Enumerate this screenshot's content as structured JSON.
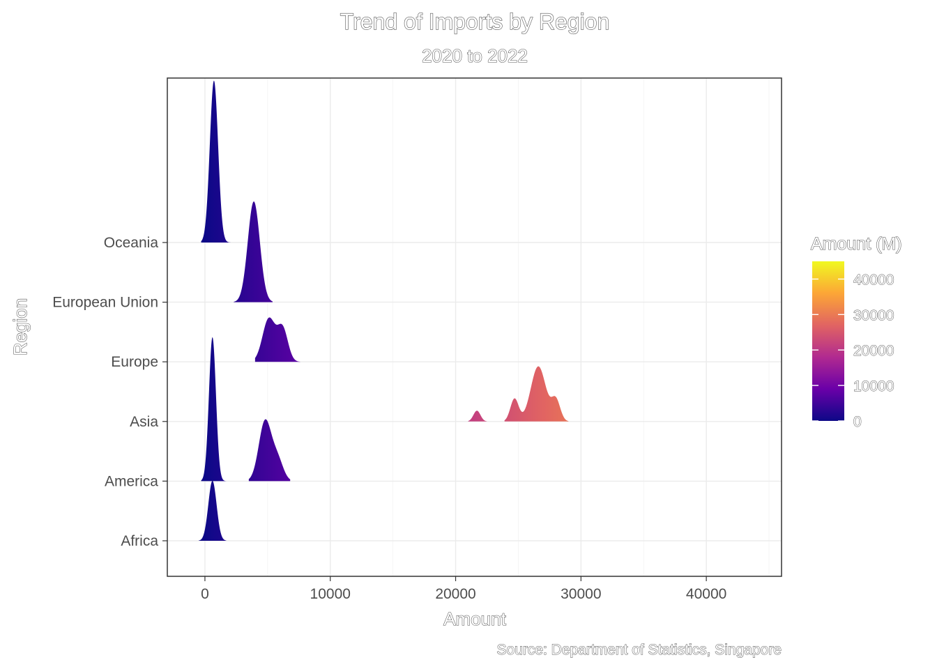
{
  "chart_data": {
    "type": "ridgeline",
    "title": "Trend of Imports by Region",
    "subtitle": "2020 to 2022",
    "xlabel": "Amount",
    "ylabel": "Region",
    "caption": "Source: Department of Statistics, Singapore",
    "xlim": [
      -3000,
      46000
    ],
    "x_ticks": [
      0,
      10000,
      20000,
      30000,
      40000
    ],
    "categories": [
      "Africa",
      "America",
      "Asia",
      "Europe",
      "European Union",
      "Oceania"
    ],
    "grid": true,
    "legend": {
      "title": "Amount (M)",
      "position": "right",
      "ticks": [
        0,
        10000,
        20000,
        30000,
        40000
      ],
      "range": [
        0,
        45000
      ],
      "colormap": "plasma",
      "colors": [
        "#0d0887",
        "#6a00a8",
        "#b12a90",
        "#e16462",
        "#fca636",
        "#f0f921"
      ]
    },
    "series": [
      {
        "category": "Africa",
        "min": -500,
        "max": 1700,
        "peaks": [
          {
            "x": 600,
            "w": 330,
            "h": 1.0
          }
        ]
      },
      {
        "category": "America",
        "min": 3500,
        "max": 6800,
        "peaks": [
          {
            "x": 4800,
            "w": 500,
            "h": 1.0
          },
          {
            "x": 5800,
            "w": 450,
            "h": 0.35
          }
        ]
      },
      {
        "category": "America",
        "min": -300,
        "max": 1900,
        "peaks": [
          {
            "x": 600,
            "w": 280,
            "h": 2.4
          }
        ]
      },
      {
        "category": "Asia",
        "min": 21000,
        "max": 22500,
        "peaks": [
          {
            "x": 21700,
            "w": 280,
            "h": 0.18
          }
        ]
      },
      {
        "category": "Asia",
        "min": 23900,
        "max": 29000,
        "peaks": [
          {
            "x": 24700,
            "w": 330,
            "h": 0.38
          },
          {
            "x": 26600,
            "w": 600,
            "h": 0.92
          },
          {
            "x": 28000,
            "w": 350,
            "h": 0.35
          }
        ]
      },
      {
        "category": "Europe",
        "min": 4000,
        "max": 7600,
        "peaks": [
          {
            "x": 5100,
            "w": 500,
            "h": 0.72
          },
          {
            "x": 6200,
            "w": 420,
            "h": 0.55
          }
        ]
      },
      {
        "category": "European Union",
        "min": 2300,
        "max": 5400,
        "peaks": [
          {
            "x": 3900,
            "w": 480,
            "h": 1.68
          }
        ]
      },
      {
        "category": "Oceania",
        "min": -300,
        "max": 2300,
        "peaks": [
          {
            "x": 720,
            "w": 330,
            "h": 2.7
          }
        ]
      }
    ]
  }
}
